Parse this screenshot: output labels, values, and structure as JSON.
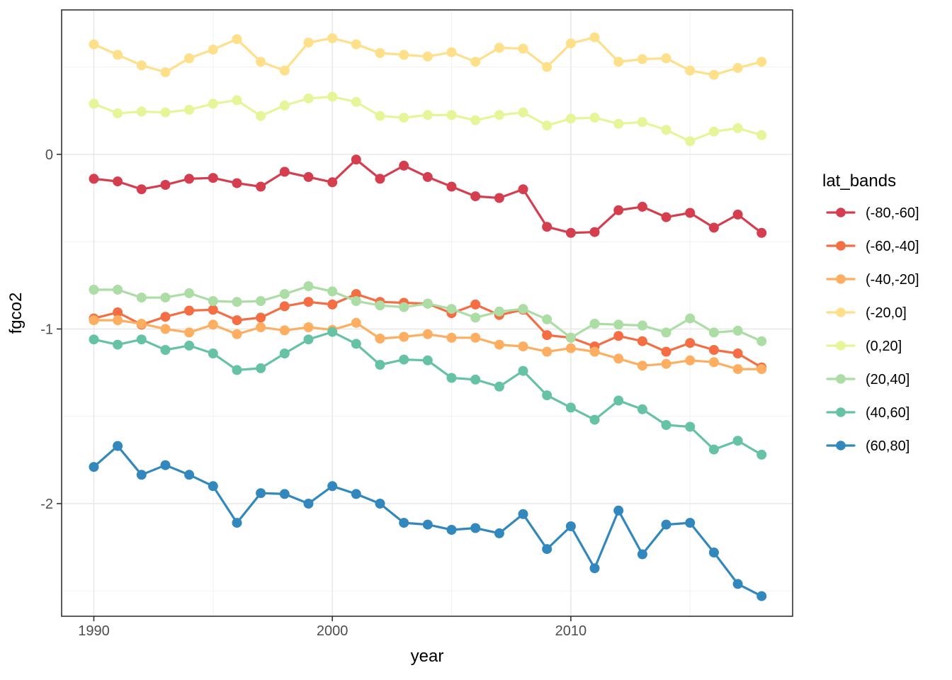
{
  "figure": {
    "background": "#ffffff"
  },
  "chart_data": {
    "type": "line",
    "title": "",
    "xlabel": "year",
    "ylabel": "fgco2",
    "legend_title": "lat_bands",
    "legend_position": "right",
    "grid": true,
    "xlim": [
      1988.65,
      2019.3
    ],
    "ylim": [
      -2.645,
      0.827
    ],
    "x_ticks": [
      1990,
      2000,
      2010
    ],
    "x_tick_labels": [
      "1990",
      "2000",
      "2010"
    ],
    "x_minor_ticks": [
      1995,
      2005,
      2015
    ],
    "y_ticks": [
      0,
      -1,
      -2
    ],
    "y_tick_labels": [
      "0",
      "-1",
      "-2"
    ],
    "y_minor_ticks": [
      0.5,
      -0.5,
      -1.5,
      -2.5
    ],
    "panel_border_color": "#333333",
    "gridline_major_color": "#e6e6e6",
    "gridline_minor_color": "#f2f2f2",
    "tick_color": "#333333",
    "tick_label_color": "#4d4d4d",
    "title_color": "#000000",
    "x": [
      1990,
      1991,
      1992,
      1993,
      1994,
      1995,
      1996,
      1997,
      1998,
      1999,
      2000,
      2001,
      2002,
      2003,
      2004,
      2005,
      2006,
      2007,
      2008,
      2009,
      2010,
      2011,
      2012,
      2013,
      2014,
      2015,
      2016,
      2017,
      2018
    ],
    "series": [
      {
        "name": "(-80,-60]",
        "color": "#d53e4f",
        "values": [
          -0.14,
          -0.155,
          -0.2,
          -0.175,
          -0.14,
          -0.135,
          -0.165,
          -0.185,
          -0.1,
          -0.13,
          -0.16,
          -0.03,
          -0.14,
          -0.065,
          -0.13,
          -0.185,
          -0.24,
          -0.25,
          -0.2,
          -0.415,
          -0.45,
          -0.445,
          -0.32,
          -0.3,
          -0.36,
          -0.335,
          -0.42,
          -0.345,
          -0.45
        ]
      },
      {
        "name": "(-60,-40]",
        "color": "#f46d43",
        "values": [
          -0.94,
          -0.905,
          -0.975,
          -0.93,
          -0.895,
          -0.89,
          -0.95,
          -0.935,
          -0.87,
          -0.845,
          -0.86,
          -0.8,
          -0.845,
          -0.85,
          -0.855,
          -0.91,
          -0.86,
          -0.92,
          -0.89,
          -1.035,
          -1.05,
          -1.1,
          -1.04,
          -1.07,
          -1.13,
          -1.08,
          -1.12,
          -1.14,
          -1.22
        ]
      },
      {
        "name": "(-40,-20]",
        "color": "#fdae61",
        "values": [
          -0.95,
          -0.95,
          -0.97,
          -1.0,
          -1.02,
          -0.975,
          -1.03,
          -0.99,
          -1.008,
          -0.99,
          -1.005,
          -0.965,
          -1.055,
          -1.045,
          -1.03,
          -1.05,
          -1.05,
          -1.09,
          -1.1,
          -1.13,
          -1.11,
          -1.13,
          -1.17,
          -1.21,
          -1.2,
          -1.18,
          -1.19,
          -1.23,
          -1.23
        ]
      },
      {
        "name": "(-20,0]",
        "color": "#fee08b",
        "values": [
          0.63,
          0.57,
          0.51,
          0.47,
          0.55,
          0.6,
          0.66,
          0.53,
          0.48,
          0.64,
          0.665,
          0.63,
          0.58,
          0.57,
          0.56,
          0.585,
          0.53,
          0.61,
          0.605,
          0.5,
          0.635,
          0.67,
          0.53,
          0.545,
          0.55,
          0.48,
          0.455,
          0.495,
          0.53
        ]
      },
      {
        "name": "(0,20]",
        "color": "#e6f598",
        "values": [
          0.29,
          0.235,
          0.245,
          0.24,
          0.255,
          0.29,
          0.31,
          0.22,
          0.28,
          0.32,
          0.33,
          0.3,
          0.22,
          0.21,
          0.225,
          0.225,
          0.195,
          0.225,
          0.24,
          0.165,
          0.205,
          0.21,
          0.175,
          0.185,
          0.14,
          0.075,
          0.13,
          0.15,
          0.11
        ]
      },
      {
        "name": "(20,40]",
        "color": "#abdda4",
        "values": [
          -0.775,
          -0.775,
          -0.82,
          -0.82,
          -0.795,
          -0.84,
          -0.845,
          -0.84,
          -0.8,
          -0.755,
          -0.785,
          -0.84,
          -0.865,
          -0.875,
          -0.855,
          -0.885,
          -0.935,
          -0.9,
          -0.885,
          -0.945,
          -1.05,
          -0.97,
          -0.975,
          -0.98,
          -1.02,
          -0.94,
          -1.02,
          -1.01,
          -1.07
        ]
      },
      {
        "name": "(40,60]",
        "color": "#66c2a5",
        "values": [
          -1.06,
          -1.09,
          -1.06,
          -1.12,
          -1.095,
          -1.14,
          -1.235,
          -1.225,
          -1.14,
          -1.06,
          -1.017,
          -1.085,
          -1.205,
          -1.175,
          -1.18,
          -1.28,
          -1.29,
          -1.33,
          -1.24,
          -1.38,
          -1.45,
          -1.52,
          -1.41,
          -1.46,
          -1.55,
          -1.56,
          -1.69,
          -1.64,
          -1.72
        ]
      },
      {
        "name": "(60,80]",
        "color": "#3288bd",
        "values": [
          -1.79,
          -1.67,
          -1.835,
          -1.78,
          -1.835,
          -1.9,
          -2.11,
          -1.94,
          -1.945,
          -2.0,
          -1.9,
          -1.945,
          -2.0,
          -2.11,
          -2.12,
          -2.15,
          -2.14,
          -2.17,
          -2.06,
          -2.26,
          -2.13,
          -2.37,
          -2.04,
          -2.29,
          -2.12,
          -2.11,
          -2.28,
          -2.46,
          -2.53
        ]
      }
    ]
  }
}
